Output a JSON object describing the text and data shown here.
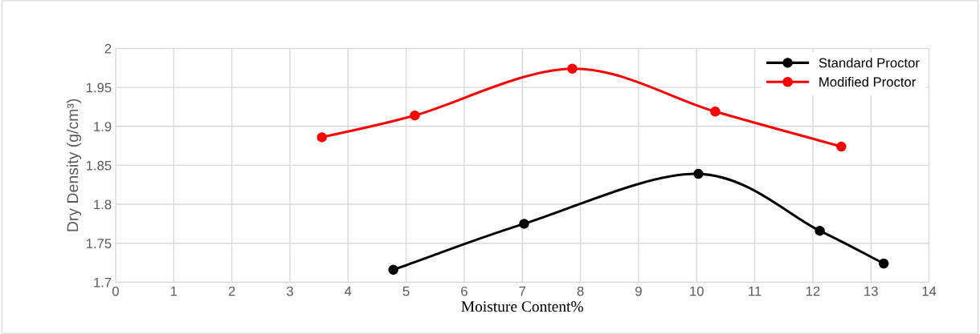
{
  "chart_data": {
    "type": "line",
    "xlabel": "Moisture Content%",
    "ylabel": "Dry Density (g/cm³)",
    "xlim": [
      0,
      14
    ],
    "xticks": [
      0,
      1,
      2,
      3,
      4,
      5,
      6,
      7,
      8,
      9,
      10,
      11,
      12,
      13,
      14
    ],
    "ylim": [
      1.7,
      2
    ],
    "yticks": [
      1.7,
      1.75,
      1.8,
      1.85,
      1.9,
      1.95,
      2
    ],
    "grid": true,
    "legend": "top right",
    "marker": "circle",
    "line_style": "solid",
    "series": [
      {
        "name": "Standard Proctor",
        "color": "#000000",
        "x": [
          4.78,
          7.03,
          10.03,
          12.12,
          13.22
        ],
        "values": [
          1.716,
          1.775,
          1.839,
          1.766,
          1.724
        ]
      },
      {
        "name": "Modified Proctor",
        "color": "#ff0000",
        "x": [
          3.55,
          5.15,
          7.86,
          10.32,
          12.49
        ],
        "values": [
          1.886,
          1.914,
          1.974,
          1.919,
          1.874
        ]
      }
    ]
  }
}
